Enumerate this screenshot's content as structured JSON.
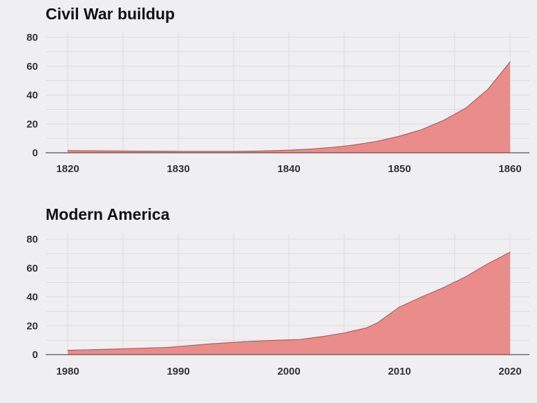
{
  "colors": {
    "background": "#efeff1",
    "area_fill": "#e98683",
    "area_line": "#d9504d"
  },
  "chart_data": [
    {
      "type": "area",
      "title": "Civil War buildup",
      "xlabel": "",
      "ylabel": "",
      "xlim": [
        1820,
        1860
      ],
      "ylim": [
        0,
        80
      ],
      "x_ticks": [
        1820,
        1830,
        1840,
        1850,
        1860
      ],
      "y_ticks": [
        0,
        20,
        40,
        60,
        80
      ],
      "grid": true,
      "legend": "none",
      "series": [
        {
          "x": [
            1820,
            1825,
            1830,
            1835,
            1838,
            1840,
            1842,
            1844,
            1846,
            1848,
            1850,
            1852,
            1854,
            1856,
            1858,
            1860
          ],
          "values": [
            1.5,
            1.2,
            1.0,
            1.0,
            1.3,
            1.8,
            2.6,
            3.8,
            5.5,
            8.0,
            11.5,
            16.0,
            22.5,
            31.0,
            44.0,
            63.0
          ]
        }
      ]
    },
    {
      "type": "area",
      "title": "Modern America",
      "xlabel": "",
      "ylabel": "",
      "xlim": [
        1980,
        2020
      ],
      "ylim": [
        0,
        80
      ],
      "x_ticks": [
        1980,
        1990,
        2000,
        2010,
        2020
      ],
      "y_ticks": [
        0,
        20,
        40,
        60,
        80
      ],
      "grid": true,
      "legend": "none",
      "series": [
        {
          "x": [
            1980,
            1985,
            1989,
            1993,
            1996,
            1999,
            2001,
            2003,
            2005,
            2007,
            2008,
            2010,
            2012,
            2014,
            2016,
            2018,
            2020
          ],
          "values": [
            3.0,
            4.0,
            5.0,
            7.5,
            9.0,
            10.0,
            10.5,
            12.5,
            15.0,
            18.5,
            22.0,
            33.0,
            40.0,
            46.5,
            54.0,
            63.0,
            71.0
          ]
        }
      ]
    }
  ]
}
